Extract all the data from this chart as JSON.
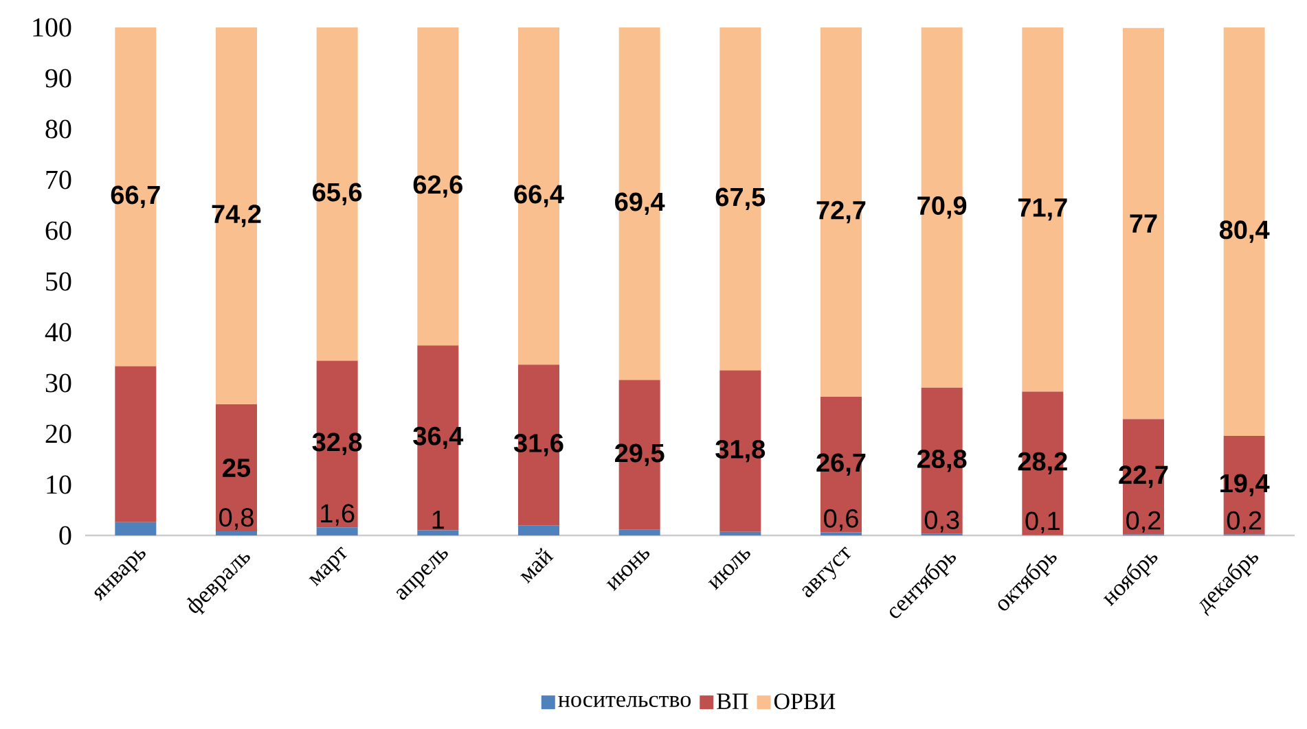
{
  "chart_data": {
    "type": "bar",
    "stacked": true,
    "categories": [
      "январь",
      "февраль",
      "март",
      "апрель",
      "май",
      "июнь",
      "июль",
      "август",
      "сентябрь",
      "октябрь",
      "ноябрь",
      "декабрь"
    ],
    "series": [
      {
        "name": "носительство",
        "color": "#4f81bd",
        "values": [
          2.6,
          0.8,
          1.6,
          1,
          2.0,
          1.1,
          0.7,
          0.6,
          0.3,
          0.1,
          0.2,
          0.2
        ],
        "value_labels": [
          null,
          "0,8",
          "1,6",
          "1",
          null,
          null,
          null,
          "0,6",
          "0,3",
          "0,1",
          "0,2",
          "0,2"
        ]
      },
      {
        "name": "ВП",
        "color": "#c0504d",
        "values": [
          30.7,
          25,
          32.8,
          36.4,
          31.6,
          29.5,
          31.8,
          26.7,
          28.8,
          28.2,
          22.7,
          19.4
        ],
        "value_labels": [
          null,
          "25",
          "32,8",
          "36,4",
          "31,6",
          "29,5",
          "31,8",
          "26,7",
          "28,8",
          "28,2",
          "22,7",
          "19,4"
        ]
      },
      {
        "name": "ОРВИ",
        "color": "#f9bf8f",
        "values": [
          66.7,
          74.2,
          65.6,
          62.6,
          66.4,
          69.4,
          67.5,
          72.7,
          70.9,
          71.7,
          77,
          80.4
        ],
        "value_labels": [
          "66,7",
          "74,2",
          "65,6",
          "62,6",
          "66,4",
          "69,4",
          "67,5",
          "72,7",
          "70,9",
          "71,7",
          "77",
          "80,4"
        ]
      }
    ],
    "ylim": [
      0,
      100
    ],
    "yticks": [
      0,
      10,
      20,
      30,
      40,
      50,
      60,
      70,
      80,
      90,
      100
    ],
    "grid": false,
    "legend": "bottom"
  }
}
